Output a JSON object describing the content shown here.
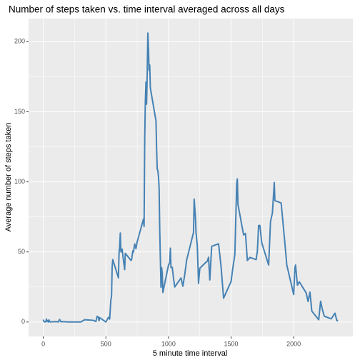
{
  "chart_data": {
    "type": "line",
    "title": "Number of steps taken vs. time interval averaged across all days",
    "x_label": "5 minute time interval",
    "y_label": "Average number of steps taken",
    "x": [
      0,
      5,
      10,
      15,
      20,
      25,
      30,
      35,
      40,
      45,
      50,
      55,
      100,
      110,
      120,
      130,
      140,
      150,
      200,
      230,
      300,
      330,
      400,
      420,
      430,
      440,
      445,
      450,
      500,
      520,
      530,
      540,
      545,
      550,
      555,
      600,
      605,
      610,
      615,
      620,
      630,
      640,
      650,
      655,
      700,
      705,
      715,
      720,
      730,
      740,
      750,
      800,
      805,
      810,
      815,
      820,
      825,
      830,
      835,
      840,
      845,
      850,
      855,
      900,
      905,
      910,
      915,
      920,
      925,
      930,
      935,
      940,
      945,
      950,
      955,
      1000,
      1010,
      1015,
      1020,
      1030,
      1040,
      1050,
      1100,
      1115,
      1130,
      1145,
      1200,
      1205,
      1215,
      1220,
      1230,
      1240,
      1250,
      1300,
      1310,
      1320,
      1330,
      1345,
      1400,
      1420,
      1440,
      1500,
      1510,
      1530,
      1545,
      1550,
      1555,
      1600,
      1615,
      1630,
      1650,
      1700,
      1710,
      1720,
      1730,
      1745,
      1800,
      1815,
      1830,
      1845,
      1850,
      1900,
      1930,
      1945,
      2000,
      2010,
      2015,
      2030,
      2045,
      2100,
      2115,
      2130,
      2145,
      2200,
      2215,
      2230,
      2245,
      2300,
      2330,
      2345,
      2355
    ],
    "series": [
      {
        "name": "steps",
        "color": "#4682b4",
        "values": [
          1.7,
          0.3,
          0.1,
          0.2,
          0.1,
          2.1,
          0.5,
          0.9,
          0,
          1.5,
          0.3,
          0.1,
          0.3,
          0.2,
          0,
          1.8,
          0.2,
          0.3,
          0,
          0,
          0,
          1.6,
          1.2,
          0.3,
          4.1,
          3.5,
          0.8,
          3.1,
          0,
          3.3,
          2.1,
          16,
          18.3,
          39.5,
          44.5,
          31.5,
          49.3,
          53.8,
          63.5,
          50,
          52,
          44,
          37.4,
          49,
          44,
          44.4,
          50.7,
          49.9,
          55.7,
          52.3,
          57.3,
          73.4,
          68.2,
          129.4,
          157.5,
          171.2,
          155.4,
          177.3,
          206.2,
          195.9,
          179.6,
          183.4,
          167,
          143.5,
          124,
          109.1,
          108.1,
          103.7,
          96,
          66.2,
          45.2,
          24.8,
          38.8,
          35,
          21.1,
          40.6,
          42.4,
          52.7,
          38.9,
          39,
          31.4,
          25,
          31.4,
          25.5,
          34,
          44.2,
          63.9,
          87.7,
          74.7,
          63.9,
          54.5,
          27.5,
          38.3,
          42.7,
          43.3,
          46.2,
          30,
          54,
          55.8,
          39.6,
          17,
          28.9,
          36,
          48.1,
          98.7,
          102.1,
          83.9,
          62.1,
          63.2,
          43.9,
          46.1,
          44.5,
          50.5,
          68.9,
          68.9,
          56.5,
          40.7,
          71.8,
          77.7,
          99.5,
          86.6,
          84.9,
          56,
          40.7,
          19.6,
          38.7,
          40.6,
          26.2,
          28.7,
          20.7,
          14.6,
          21.3,
          7.8,
          1.6,
          14.8,
          8.6,
          4.1,
          2.3,
          6.3,
          0.9,
          1.1
        ]
      }
    ],
    "xlim": [
      -117.75,
      2472.75
    ],
    "xticks": [
      0,
      500,
      1000,
      1500,
      2000
    ],
    "ylim": [
      -10.3,
      216.5
    ],
    "yticks": [
      0,
      50,
      100,
      150,
      200
    ],
    "grid": true
  }
}
